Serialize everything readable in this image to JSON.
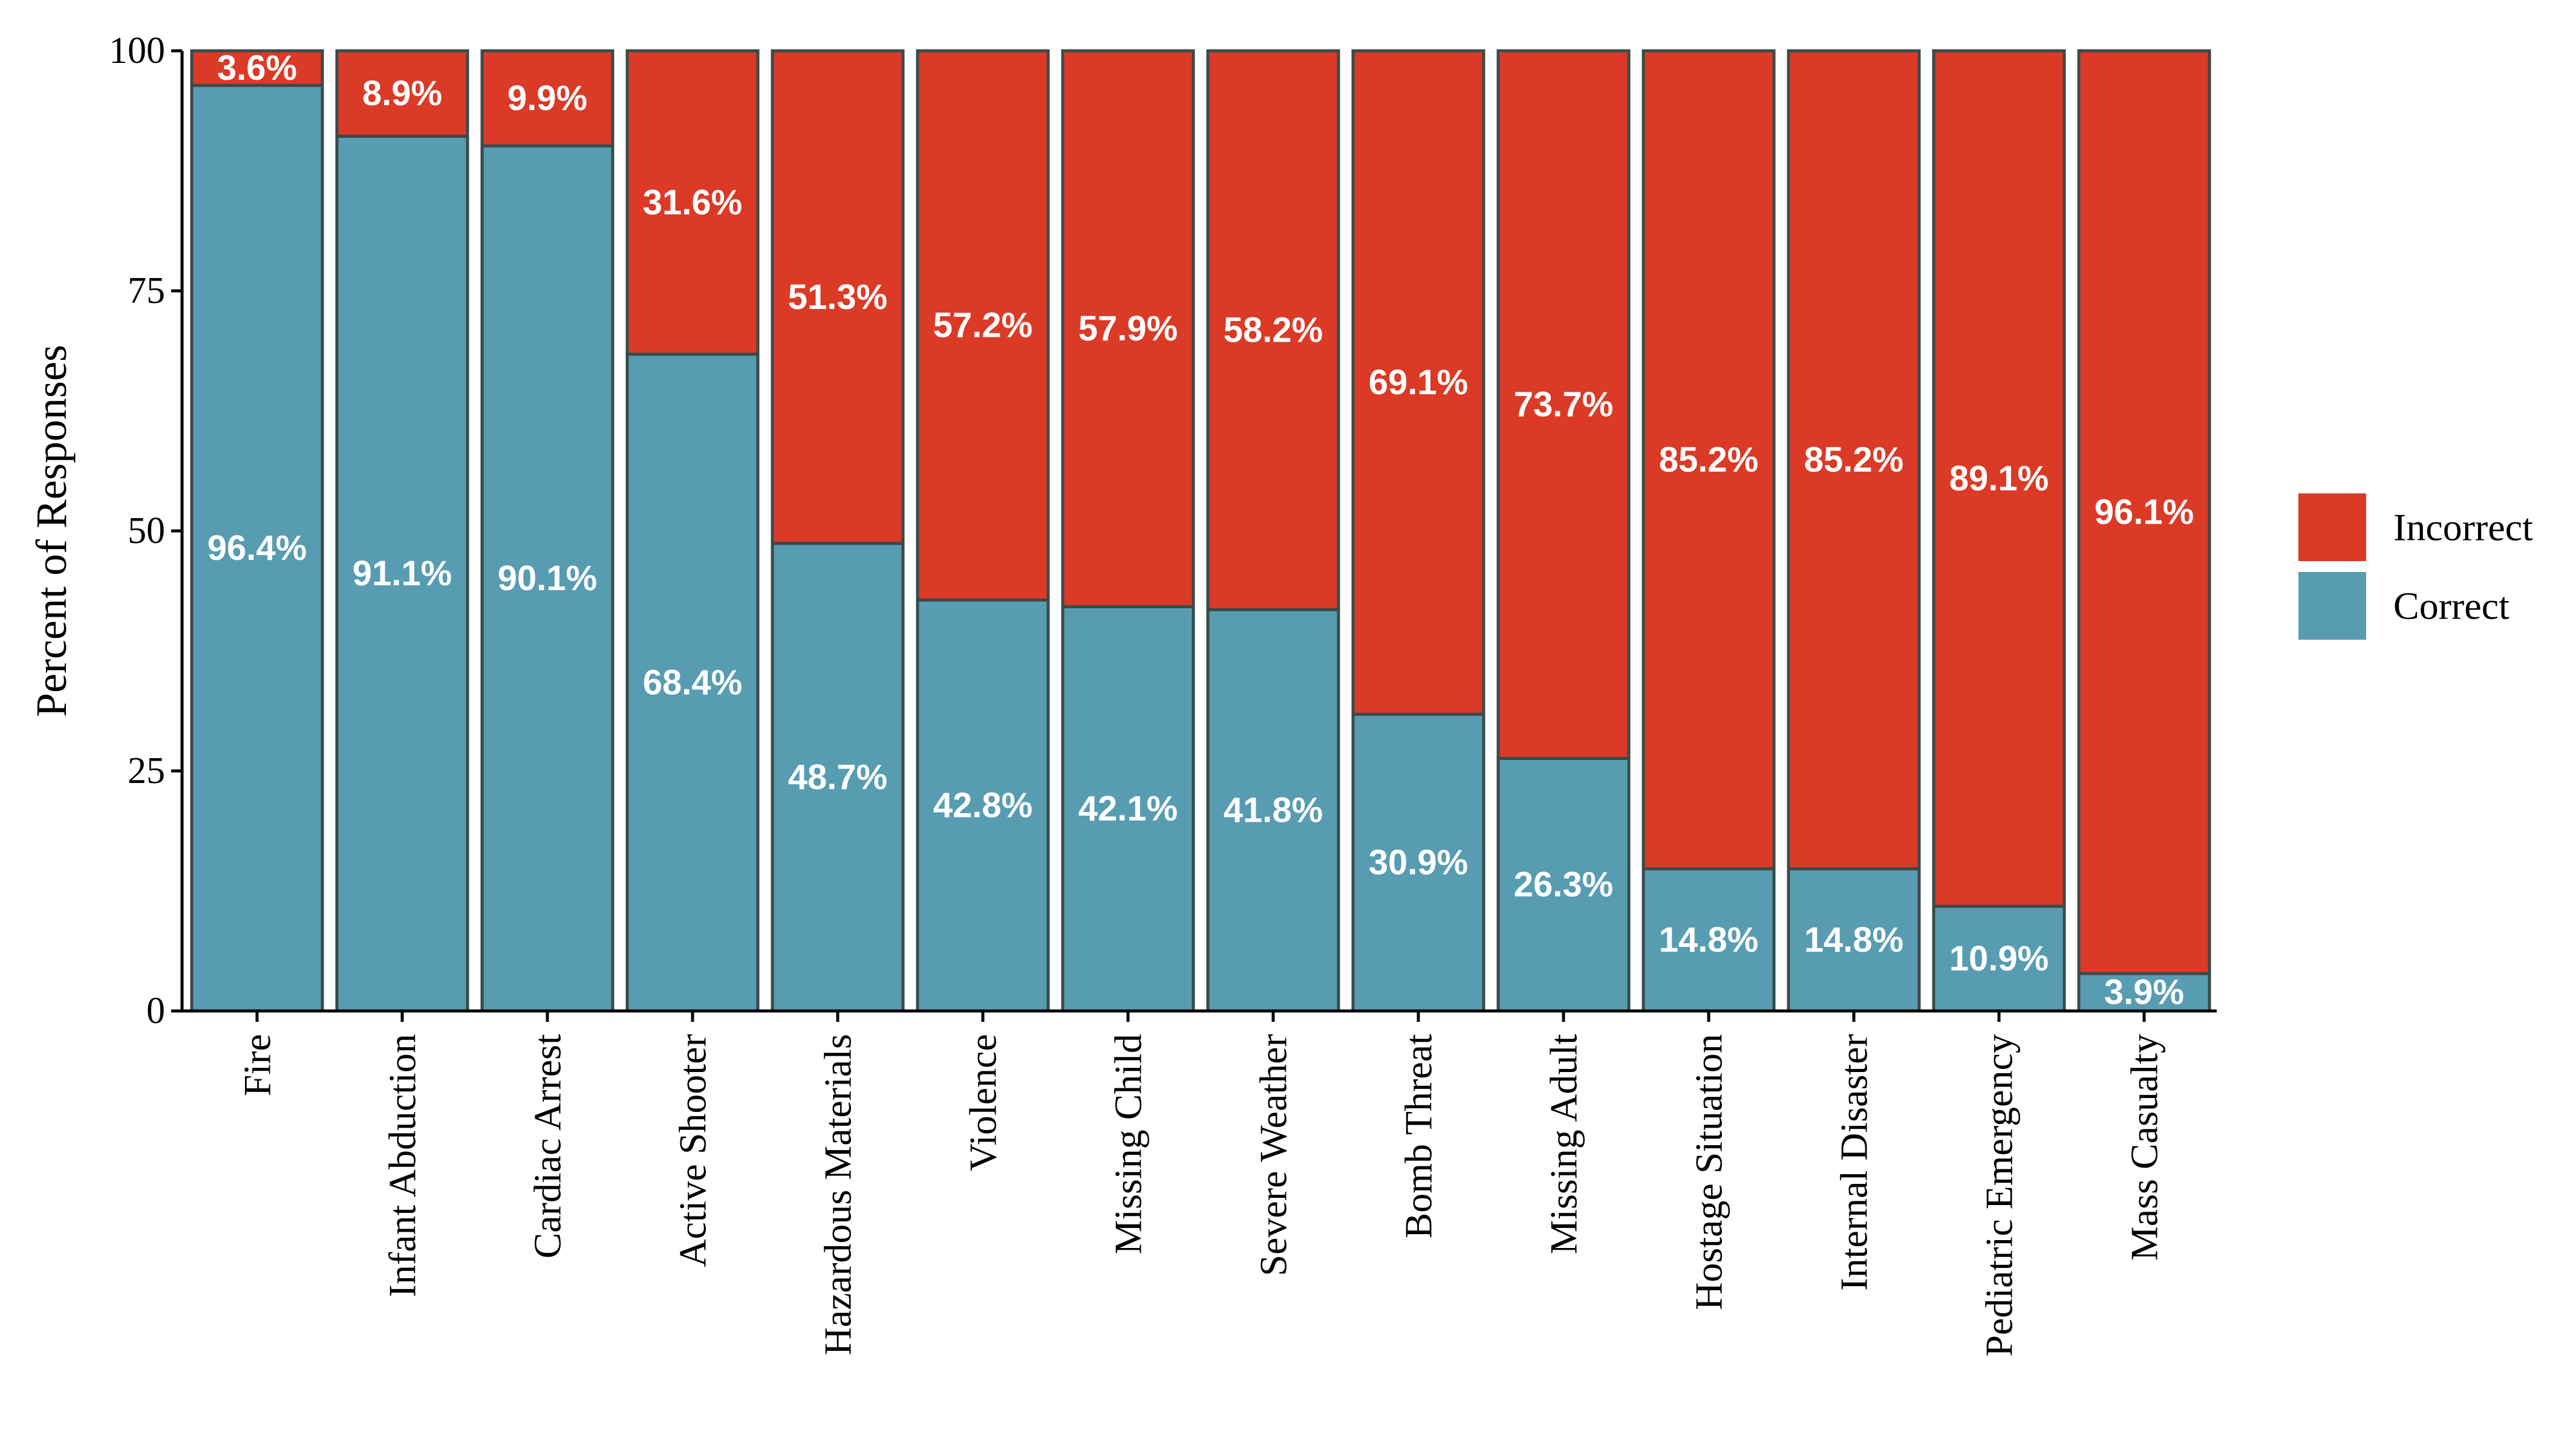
{
  "chart_data": {
    "type": "bar",
    "stacked": true,
    "orientation": "vertical",
    "categories": [
      "Fire",
      "Infant Abduction",
      "Cardiac Arrest",
      "Active Shooter",
      "Hazardous Materials",
      "Violence",
      "Missing Child",
      "Severe Weather",
      "Bomb Threat",
      "Missing Adult",
      "Hostage Situation",
      "Internal Disaster",
      "Pediatric Emergency",
      "Mass Casualty"
    ],
    "series": [
      {
        "name": "Correct",
        "color": "#589cb2",
        "values": [
          96.4,
          91.1,
          90.1,
          68.4,
          48.7,
          42.8,
          42.1,
          41.8,
          30.9,
          26.3,
          14.8,
          14.8,
          10.9,
          3.9
        ],
        "labels": [
          "96.4%",
          "91.1%",
          "90.1%",
          "68.4%",
          "48.7%",
          "42.8%",
          "42.1%",
          "41.8%",
          "30.9%",
          "26.3%",
          "14.8%",
          "14.8%",
          "10.9%",
          "3.9%"
        ]
      },
      {
        "name": "Incorrect",
        "color": "#db3a26",
        "values": [
          3.6,
          8.9,
          9.9,
          31.6,
          51.3,
          57.2,
          57.9,
          58.2,
          69.1,
          73.7,
          85.2,
          85.2,
          89.1,
          96.1
        ],
        "labels": [
          "3.6%",
          "8.9%",
          "9.9%",
          "31.6%",
          "51.3%",
          "57.2%",
          "57.9%",
          "58.2%",
          "69.1%",
          "73.7%",
          "85.2%",
          "85.2%",
          "89.1%",
          "96.1%"
        ]
      }
    ],
    "ylabel": "Percent of Responses",
    "xlabel": "",
    "ylim": [
      0,
      100
    ],
    "yticks": [
      0,
      25,
      50,
      75,
      100
    ],
    "yticklabels": [
      "0",
      "25",
      "50",
      "75",
      "100"
    ],
    "legend": {
      "placement": "right",
      "entries": [
        "Incorrect",
        "Correct"
      ]
    },
    "grid": false,
    "bar_outline_color": "#3a4a4a"
  }
}
